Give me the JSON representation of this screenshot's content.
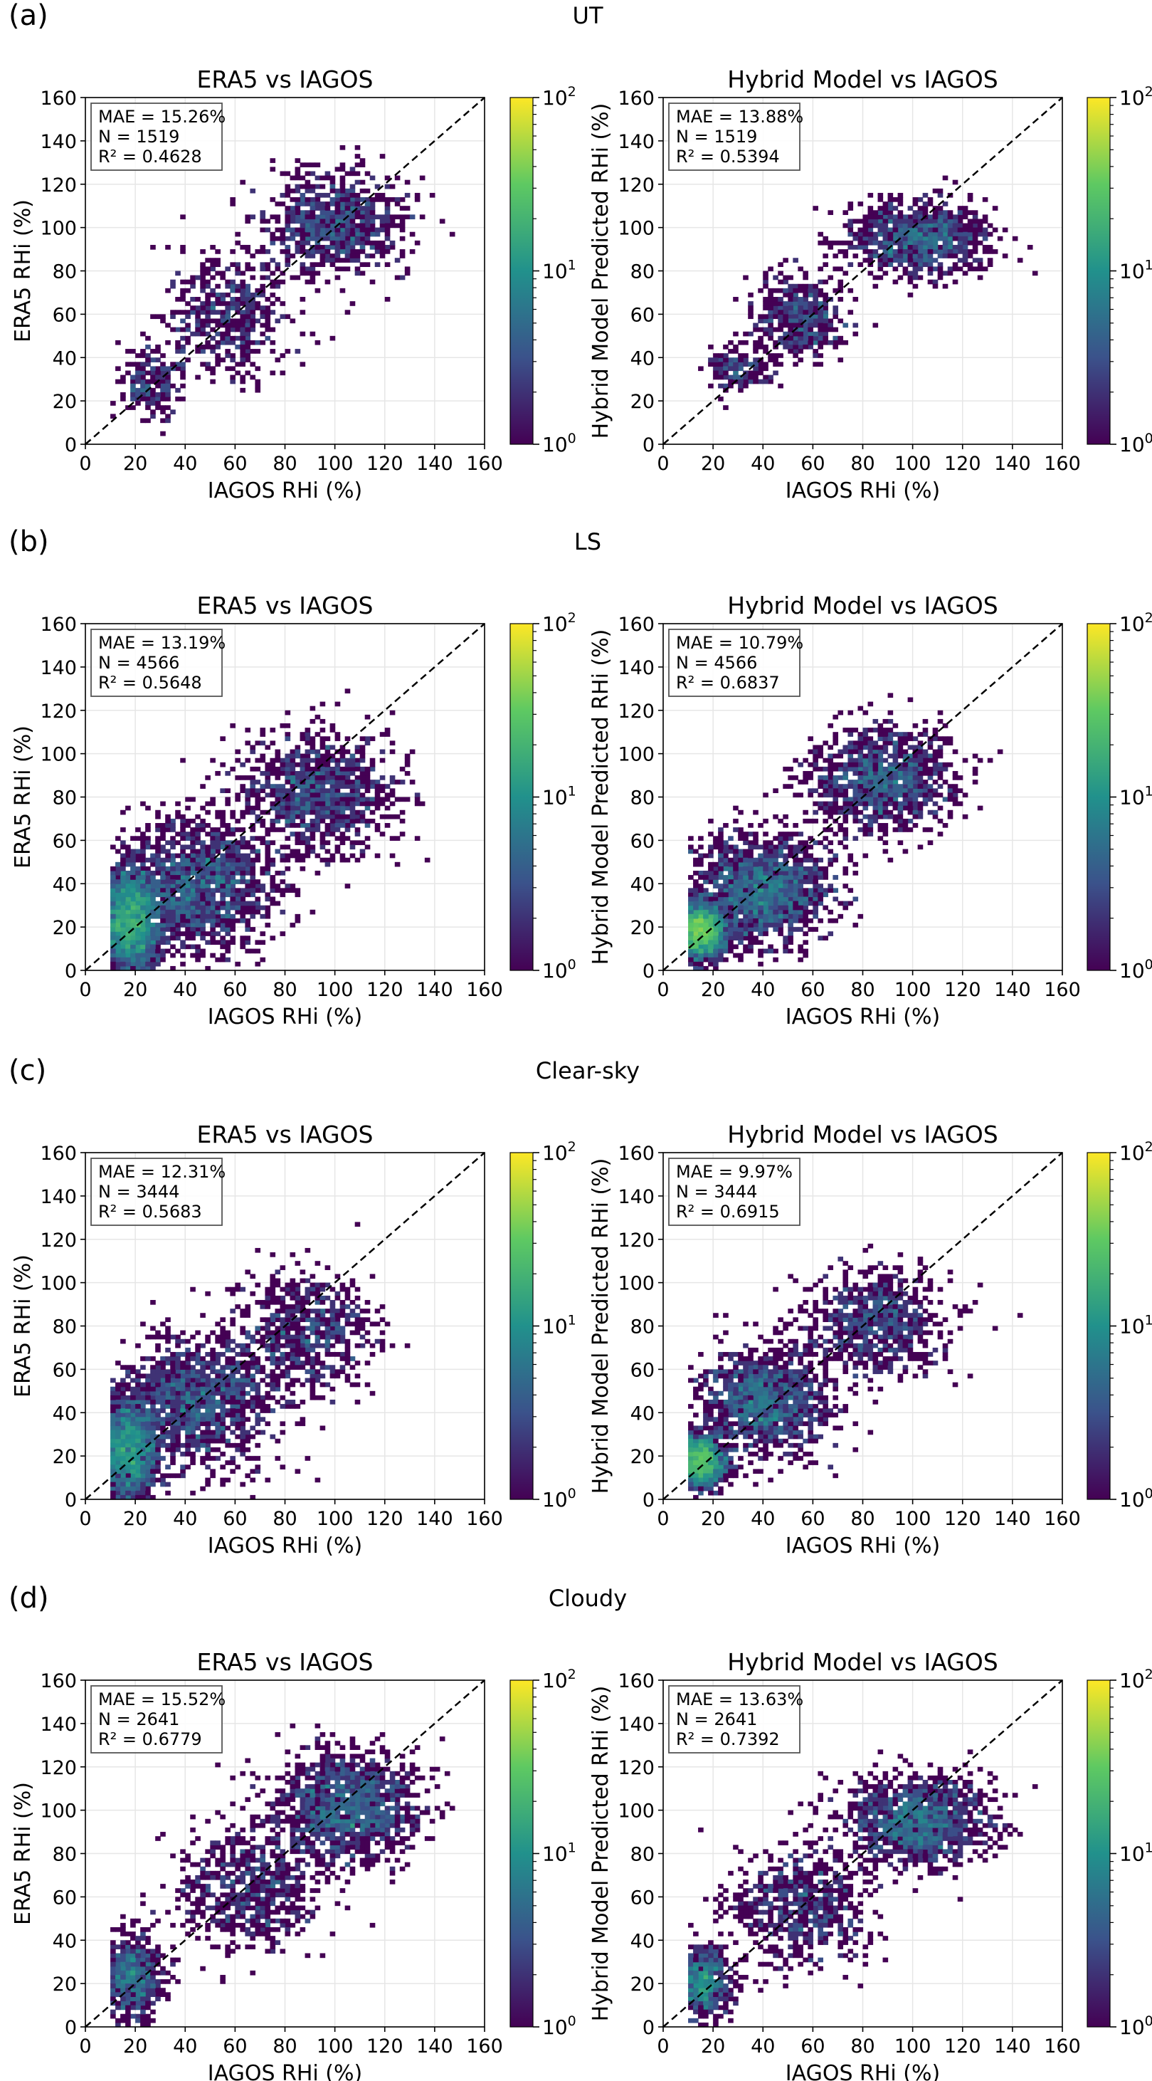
{
  "chart_data": [
    {
      "row_label": "(a)",
      "row_title": "UT",
      "type": "heatmap",
      "title": "ERA5 vs IAGOS",
      "xlabel": "IAGOS RHi (%)",
      "ylabel": "ERA5 RHi (%)",
      "stats": [
        "MAE = 15.26%",
        "N = 1519",
        "R² = 0.4628"
      ],
      "n": 1519,
      "clusters": [
        [
          100,
          102,
          14,
          12,
          0.55
        ],
        [
          57,
          60,
          12,
          14,
          0.33
        ],
        [
          25,
          28,
          7,
          8,
          0.12
        ]
      ]
    },
    {
      "type": "heatmap",
      "title": "Hybrid Model vs IAGOS",
      "xlabel": "IAGOS RHi (%)",
      "ylabel": "Hybrid Model Predicted RHi (%)",
      "stats": [
        "MAE = 13.88%",
        "N = 1519",
        "R² = 0.5394"
      ],
      "n": 1519,
      "clusters": [
        [
          102,
          95,
          14,
          8,
          0.58
        ],
        [
          55,
          58,
          10,
          10,
          0.32
        ],
        [
          30,
          35,
          6,
          5,
          0.1
        ]
      ]
    },
    {
      "row_label": "(b)",
      "row_title": "LS",
      "type": "heatmap",
      "title": "ERA5 vs IAGOS",
      "xlabel": "IAGOS RHi (%)",
      "ylabel": "ERA5 RHi (%)",
      "stats": [
        "MAE = 13.19%",
        "N = 4566",
        "R² = 0.5648"
      ],
      "n": 4566,
      "clusters": [
        [
          18,
          22,
          6,
          12,
          0.45
        ],
        [
          45,
          40,
          15,
          15,
          0.33
        ],
        [
          92,
          82,
          16,
          14,
          0.22
        ]
      ]
    },
    {
      "type": "heatmap",
      "title": "Hybrid Model vs IAGOS",
      "xlabel": "IAGOS RHi (%)",
      "ylabel": "Hybrid Model Predicted RHi (%)",
      "stats": [
        "MAE = 10.79%",
        "N = 4566",
        "R² = 0.6837"
      ],
      "n": 4566,
      "clusters": [
        [
          15,
          18,
          5,
          6,
          0.4
        ],
        [
          40,
          38,
          14,
          12,
          0.35
        ],
        [
          88,
          88,
          15,
          12,
          0.25
        ]
      ]
    },
    {
      "row_label": "(c)",
      "row_title": "Clear-sky",
      "type": "heatmap",
      "title": "ERA5 vs IAGOS",
      "xlabel": "IAGOS RHi (%)",
      "ylabel": "ERA5 RHi (%)",
      "stats": [
        "MAE = 12.31%",
        "N = 3444",
        "R² = 0.5683"
      ],
      "n": 3444,
      "clusters": [
        [
          17,
          22,
          6,
          12,
          0.42
        ],
        [
          45,
          45,
          15,
          15,
          0.38
        ],
        [
          88,
          78,
          14,
          14,
          0.2
        ]
      ]
    },
    {
      "type": "heatmap",
      "title": "Hybrid Model vs IAGOS",
      "xlabel": "IAGOS RHi (%)",
      "ylabel": "Hybrid Model Predicted RHi (%)",
      "stats": [
        "MAE = 9.97%",
        "N = 3444",
        "R² = 0.6915"
      ],
      "n": 3444,
      "clusters": [
        [
          15,
          18,
          5,
          6,
          0.4
        ],
        [
          40,
          45,
          13,
          12,
          0.38
        ],
        [
          85,
          82,
          14,
          12,
          0.22
        ]
      ]
    },
    {
      "row_label": "(d)",
      "row_title": "Cloudy",
      "type": "heatmap",
      "title": "ERA5 vs IAGOS",
      "xlabel": "IAGOS RHi (%)",
      "ylabel": "ERA5 RHi (%)",
      "stats": [
        "MAE = 15.52%",
        "N = 2641",
        "R² = 0.6779"
      ],
      "n": 2641,
      "clusters": [
        [
          105,
          102,
          14,
          12,
          0.5
        ],
        [
          18,
          22,
          6,
          10,
          0.25
        ],
        [
          65,
          65,
          15,
          15,
          0.25
        ]
      ]
    },
    {
      "type": "heatmap",
      "title": "Hybrid Model vs IAGOS",
      "xlabel": "IAGOS RHi (%)",
      "ylabel": "Hybrid Model Predicted RHi (%)",
      "stats": [
        "MAE = 13.63%",
        "N = 2641",
        "R² = 0.7392"
      ],
      "n": 2641,
      "clusters": [
        [
          102,
          95,
          14,
          10,
          0.5
        ],
        [
          16,
          20,
          5,
          8,
          0.25
        ],
        [
          55,
          55,
          15,
          14,
          0.25
        ]
      ]
    }
  ],
  "axes": {
    "xlim": [
      0,
      160
    ],
    "ylim": [
      0,
      160
    ],
    "ticks": [
      0,
      20,
      40,
      60,
      80,
      100,
      120,
      140,
      160
    ],
    "bin_width": 2
  },
  "colorbar": {
    "scale": "log",
    "range": [
      1,
      100
    ],
    "ticks": [
      {
        "base": "10",
        "exp": "0"
      },
      {
        "base": "10",
        "exp": "1"
      },
      {
        "base": "10",
        "exp": "2"
      }
    ],
    "colormap": "viridis",
    "stops": [
      "#440154",
      "#3b528b",
      "#21918c",
      "#5ec962",
      "#fde725"
    ]
  }
}
